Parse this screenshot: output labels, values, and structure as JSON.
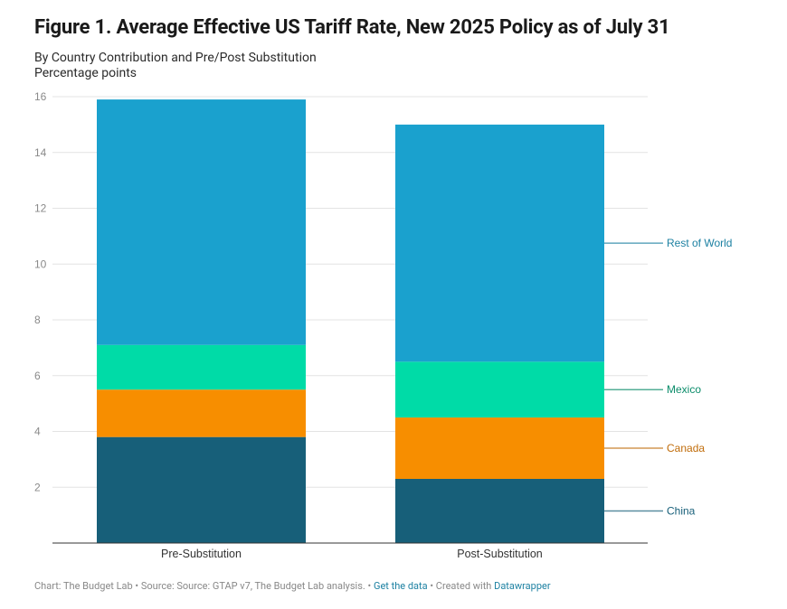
{
  "title": "Figure 1. Average Effective US Tariff Rate, New 2025 Policy as of July 31",
  "subtitle": "By Country Contribution and Pre/Post Substitution",
  "unit_label": "Percentage points",
  "footer": {
    "chart_credit": "Chart: The Budget Lab",
    "sep": " • ",
    "source": "Source: Source: GTAP v7, The Budget Lab analysis.",
    "get_data": "Get the data",
    "created_with": "Created with",
    "datawrapper": "Datawrapper"
  },
  "chart_data": {
    "type": "bar",
    "stacked": true,
    "categories": [
      "Pre-Substitution",
      "Post-Substitution"
    ],
    "series": [
      {
        "name": "China",
        "values": [
          3.8,
          2.3
        ],
        "color": "#175f79",
        "label_color": "#175f79"
      },
      {
        "name": "Canada",
        "values": [
          1.7,
          2.2
        ],
        "color": "#f78e00",
        "label_color": "#c06c0a"
      },
      {
        "name": "Mexico",
        "values": [
          1.6,
          2.0
        ],
        "color": "#00dba7",
        "label_color": "#0b8c6a"
      },
      {
        "name": "Rest of World",
        "values": [
          8.8,
          8.5
        ],
        "color": "#1aa1ce",
        "label_color": "#1d81a2"
      }
    ],
    "ylim": [
      0,
      16
    ],
    "yticks": [
      2,
      4,
      6,
      8,
      10,
      12,
      14,
      16
    ],
    "grid": true,
    "legend": "direct labels right of last bar"
  }
}
